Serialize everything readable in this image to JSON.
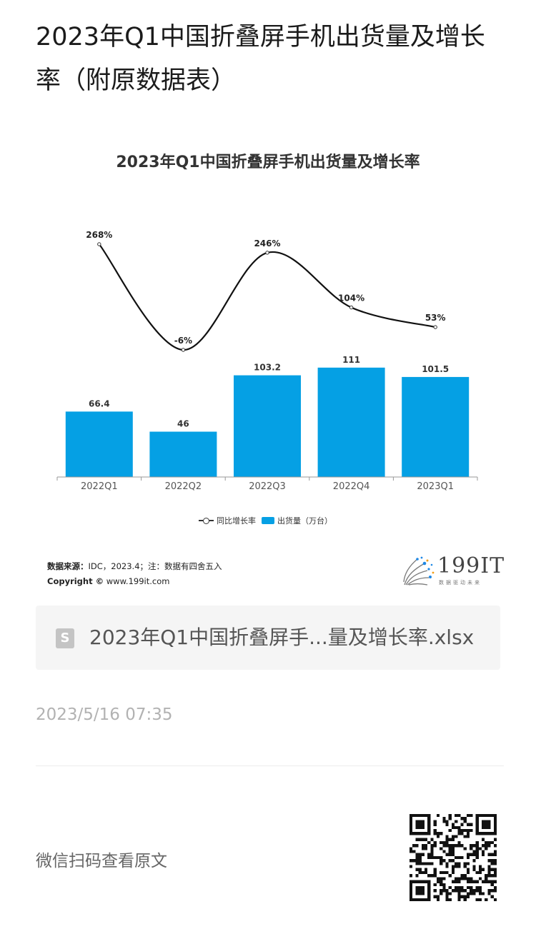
{
  "article": {
    "title": "2023年Q1中国折叠屏手机出货量及增长率（附原数据表）",
    "attachment_name": "2023年Q1中国折叠屏手...量及增长率.xlsx",
    "timestamp": "2023/5/16 07:35",
    "qr_caption": "微信扫码查看原文",
    "file_icon_letter": "S"
  },
  "chart_data": {
    "type": "bar",
    "title": "2023年Q1中国折叠屏手机出货量及增长率",
    "categories": [
      "2022Q1",
      "2022Q2",
      "2022Q3",
      "2022Q4",
      "2023Q1"
    ],
    "series": [
      {
        "name": "出货量（万台）",
        "type": "bar",
        "values": [
          66.4,
          46,
          103.2,
          111,
          101.5
        ],
        "labels": [
          "66.4",
          "46",
          "103.2",
          "111",
          "101.5"
        ],
        "color": "#05a0e4"
      },
      {
        "name": "同比增长率",
        "type": "line",
        "values": [
          268,
          -6,
          246,
          104,
          53
        ],
        "labels": [
          "268%",
          "-6%",
          "246%",
          "104%",
          "53%"
        ],
        "color": "#111111"
      }
    ],
    "legend_position": "bottom",
    "grid": false
  },
  "source": {
    "label": "数据来源：",
    "text": "IDC，2023.4；注：数据有四舍五入",
    "copyright_label": "Copyright ©",
    "copyright_site": "www.199it.com"
  },
  "logo": {
    "text": "199IT",
    "sub": "数据驱动未来"
  },
  "legend_icons": [
    "line-marker-icon",
    "bar-swatch-icon"
  ]
}
